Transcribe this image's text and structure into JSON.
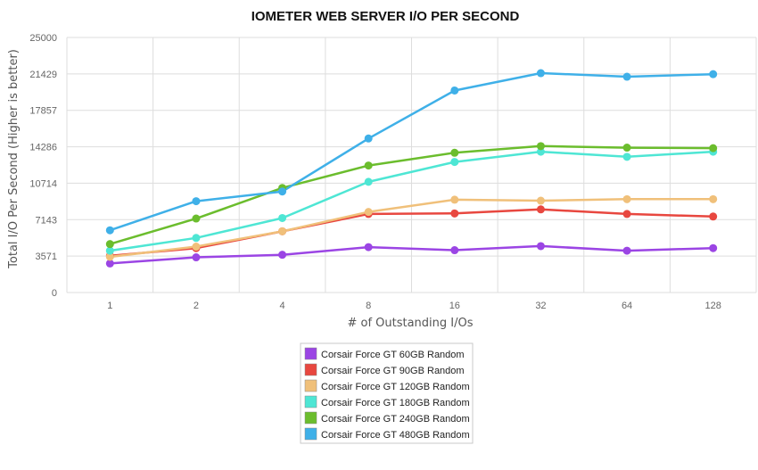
{
  "chart_data": {
    "type": "line",
    "title": "IOMETER WEB SERVER I/O PER SECOND",
    "xlabel": "# of Outstanding I/Os",
    "ylabel": "Total I/O Per Second (Higher is better)",
    "categories": [
      "1",
      "2",
      "4",
      "8",
      "16",
      "32",
      "64",
      "128"
    ],
    "yticks": [
      0,
      3571,
      7143,
      10714,
      14286,
      17857,
      21429,
      25000
    ],
    "ylim": [
      0,
      25000
    ],
    "grid": true,
    "legend_position": "bottom-center",
    "series": [
      {
        "name": "Corsair Force GT 60GB Random",
        "color": "#9b45e4",
        "values": [
          2850,
          3450,
          3700,
          4450,
          4150,
          4550,
          4100,
          4350
        ]
      },
      {
        "name": "Corsair Force GT 90GB Random",
        "color": "#e8473f",
        "values": [
          3600,
          4350,
          6000,
          7700,
          7750,
          8150,
          7700,
          7450
        ]
      },
      {
        "name": "Corsair Force GT 120GB Random",
        "color": "#f0c07a",
        "values": [
          3500,
          4500,
          6000,
          7900,
          9100,
          9000,
          9150,
          9150
        ]
      },
      {
        "name": "Corsair Force GT 180GB Random",
        "color": "#4ee6d4",
        "values": [
          4100,
          5350,
          7300,
          10850,
          12800,
          13800,
          13300,
          13800
        ]
      },
      {
        "name": "Corsair Force GT 240GB Random",
        "color": "#6bbd2d",
        "values": [
          4750,
          7250,
          10250,
          12450,
          13700,
          14350,
          14200,
          14150
        ]
      },
      {
        "name": "Corsair Force GT 480GB Random",
        "color": "#3fb0e8",
        "values": [
          6100,
          8950,
          9900,
          15100,
          19800,
          21500,
          21150,
          21400
        ]
      }
    ]
  }
}
